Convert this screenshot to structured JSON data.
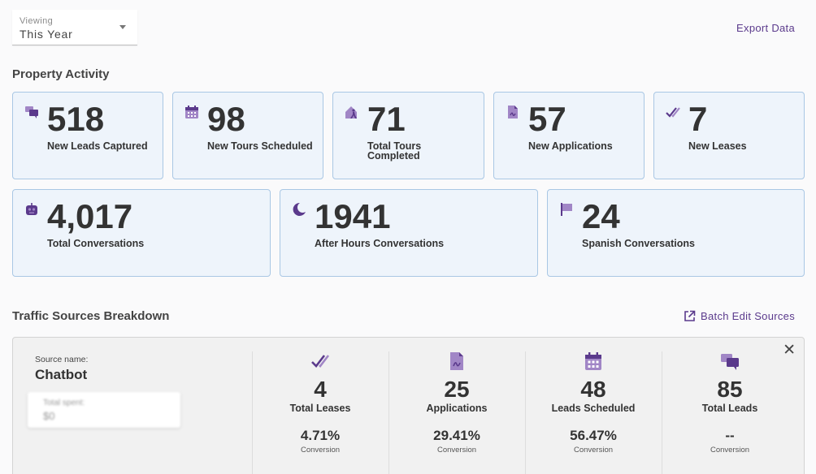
{
  "viewing": {
    "label": "Viewing",
    "value": "This Year"
  },
  "export_label": "Export Data",
  "property_activity": {
    "title": "Property Activity",
    "cards": [
      {
        "icon": "chat-bubbles-icon",
        "value": "518",
        "caption_lines": [
          "New Leads Captured"
        ]
      },
      {
        "icon": "calendar-icon",
        "value": "98",
        "caption_lines": [
          "New Tours Scheduled"
        ]
      },
      {
        "icon": "house-walking-icon",
        "value": "71",
        "caption_lines": [
          "Total Tours",
          "Completed"
        ]
      },
      {
        "icon": "document-icon",
        "value": "57",
        "caption_lines": [
          "New Applications"
        ]
      },
      {
        "icon": "double-check-icon",
        "value": "7",
        "caption_lines": [
          "New Leases"
        ]
      },
      {
        "icon": "robot-icon",
        "value": "4,017",
        "caption_lines": [
          "Total Conversations"
        ]
      },
      {
        "icon": "moon-icon",
        "value": "1941",
        "caption_lines": [
          "After Hours Conversations"
        ]
      },
      {
        "icon": "flag-icon",
        "value": "24",
        "caption_lines": [
          "Spanish Conversations"
        ]
      }
    ]
  },
  "traffic": {
    "title": "Traffic Sources Breakdown",
    "batch_label": "Batch Edit Sources",
    "source_label": "Source name:",
    "source_name": "Chatbot",
    "spent_label": "Total spent:",
    "spent_value": "$0",
    "metrics": [
      {
        "icon": "double-check-icon",
        "value": "4",
        "label": "Total Leases",
        "percent": "4.71%",
        "conversion": "Conversion"
      },
      {
        "icon": "document-icon",
        "value": "25",
        "label": "Applications",
        "percent": "29.41%",
        "conversion": "Conversion"
      },
      {
        "icon": "calendar-icon",
        "value": "48",
        "label": "Leads Scheduled",
        "percent": "56.47%",
        "conversion": "Conversion"
      },
      {
        "icon": "chat-bubbles-icon",
        "value": "85",
        "label": "Total Leads",
        "percent": "--",
        "conversion": "Conversion"
      }
    ]
  },
  "colors": {
    "accent": "#5b3a8c",
    "icon_light": "#a186c6",
    "card_bg": "#eef4fb",
    "card_border": "#a9c7e4"
  }
}
